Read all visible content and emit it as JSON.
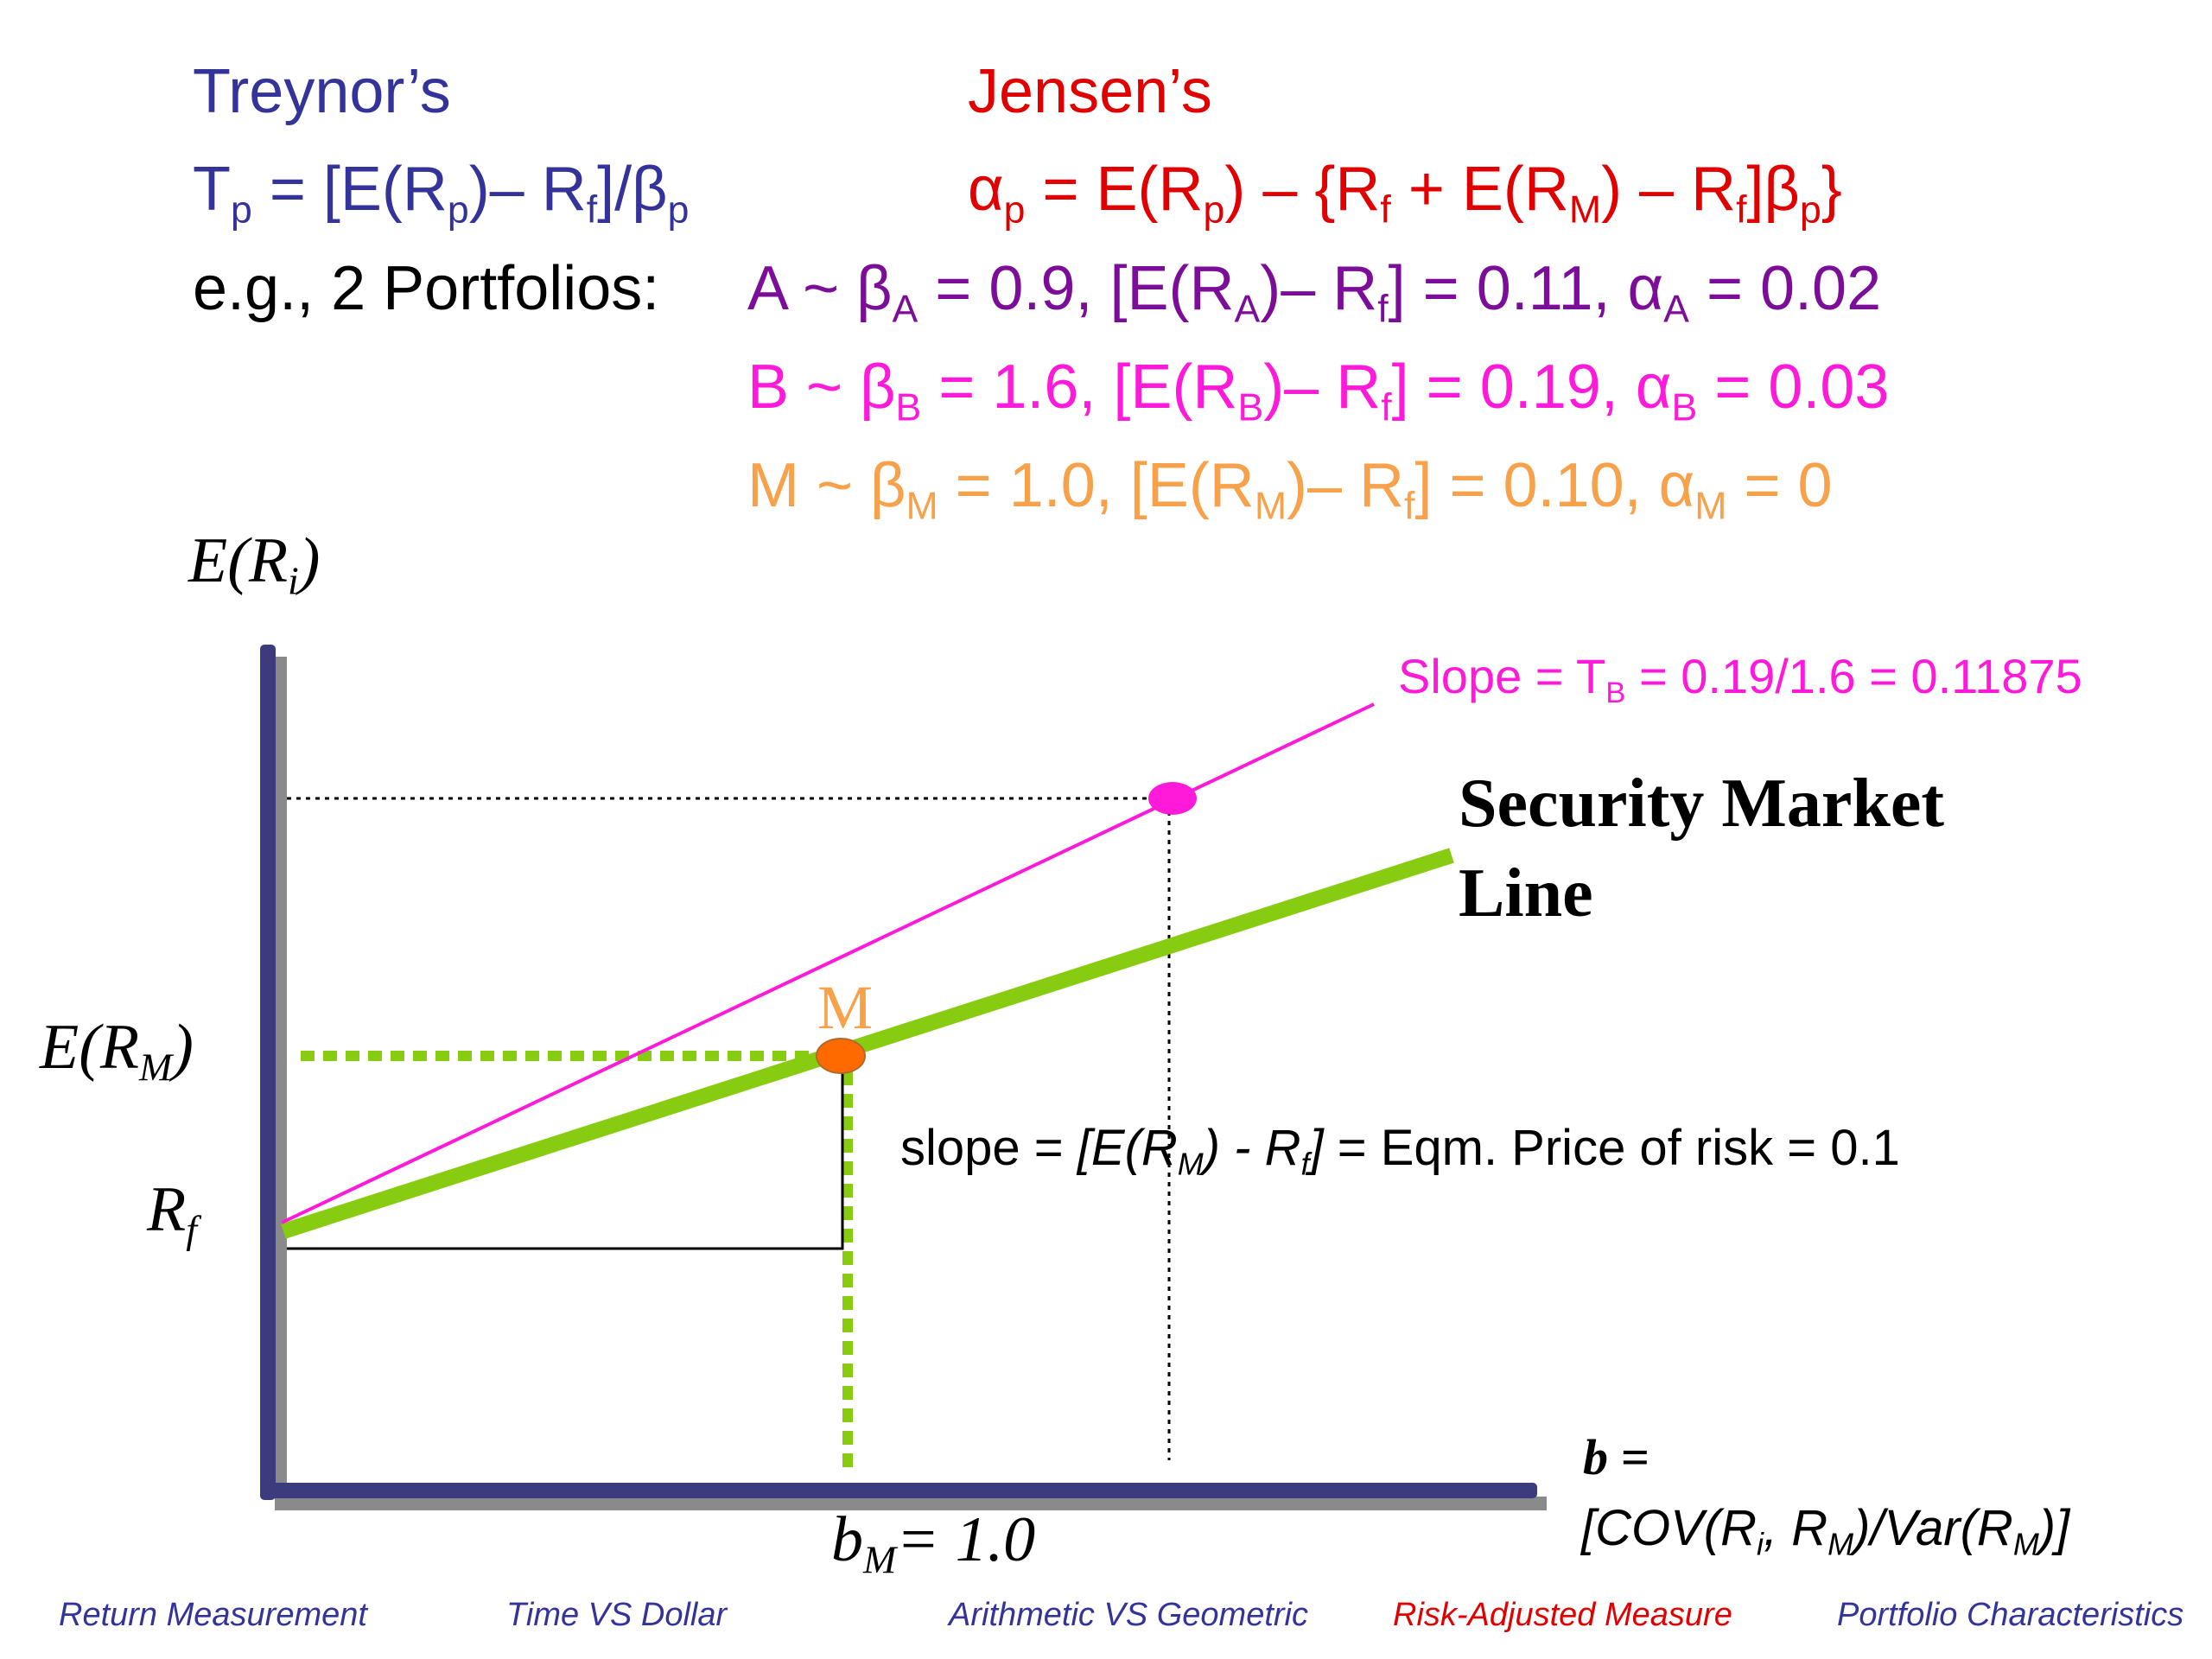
{
  "colors": {
    "treynor": "#33339a",
    "jensen": "#e00000",
    "portfolio_a": "#7b0d98",
    "portfolio_b": "#ff1ad9",
    "portfolio_m": "#f7a24b",
    "sml": "#88cc11",
    "axis": "#3b3b7e",
    "m_point": "#ff6a00",
    "nav_active": "#e00000",
    "nav_default": "#33339a"
  },
  "header": {
    "treynor_title": "Treynor’s",
    "jensen_title": "Jensen’s",
    "treynor_formula": {
      "t": "T",
      "p1": "p",
      "eq": " = [E(R",
      "p2": "p",
      "mid": ")– R",
      "f": "f",
      "end": "]/β",
      "p3": "p"
    },
    "jensen_formula": {
      "alpha": "α",
      "p1": "p",
      "eq": " = E(R",
      "p2": "p",
      "mid": ") – {R",
      "f1": "f",
      "plus": " + E(R",
      "M": "M",
      "mid2": ") – R",
      "f2": "f",
      "beta": "]β",
      "p3": "p",
      "end": "}"
    },
    "example_label": "e.g., 2 Portfolios:",
    "portfolio_a": {
      "name": "A",
      "beta": "0.9",
      "excess": "0.11",
      "alpha": "0.02"
    },
    "portfolio_b": {
      "name": "B",
      "beta": "1.6",
      "excess": "0.19",
      "alpha": "0.03"
    },
    "portfolio_m": {
      "name": "M",
      "beta": "1.0",
      "excess": "0.10",
      "alpha": "0"
    }
  },
  "diagram": {
    "y_axis_label": {
      "main": "E(R",
      "sub": "i",
      "end": ")"
    },
    "erm_label": {
      "main": "E(R",
      "sub": "M",
      "end": ")"
    },
    "rf_label": {
      "main": "R",
      "sub": "f"
    },
    "m_label": "M",
    "slope_b_label": {
      "pre": "Slope = T",
      "sub": "B",
      "post": " = 0.19/1.6 = 0.11875"
    },
    "sml_label_line1": "Security Market",
    "sml_label_line2": "Line",
    "slope_m_label": {
      "pre": "slope = ",
      "it1": "[E(R",
      "sub1": "M",
      "it2": ") - R",
      "sub2": "f",
      "it3": "]",
      "post": " = Eqm. Price of risk = 0.1"
    },
    "bm_label": {
      "main": "b",
      "sub": "M",
      "end": "= 1.0"
    },
    "x_axis_label_line1": "b =",
    "x_axis_label_line2": {
      "pre": "[COV(R",
      "sub1": "i",
      "mid": ", R",
      "sub2": "M",
      "mid2": ")/Var(R",
      "sub3": "M",
      "end": ")]"
    }
  },
  "nav": [
    {
      "label": "Return Measurement",
      "active": false
    },
    {
      "label": "Time VS Dollar",
      "active": false
    },
    {
      "label": "Arithmetic VS Geometric",
      "active": false
    },
    {
      "label": "Risk-Adjusted Measure",
      "active": true
    },
    {
      "label": "Portfolio Characteristics",
      "active": false
    }
  ]
}
